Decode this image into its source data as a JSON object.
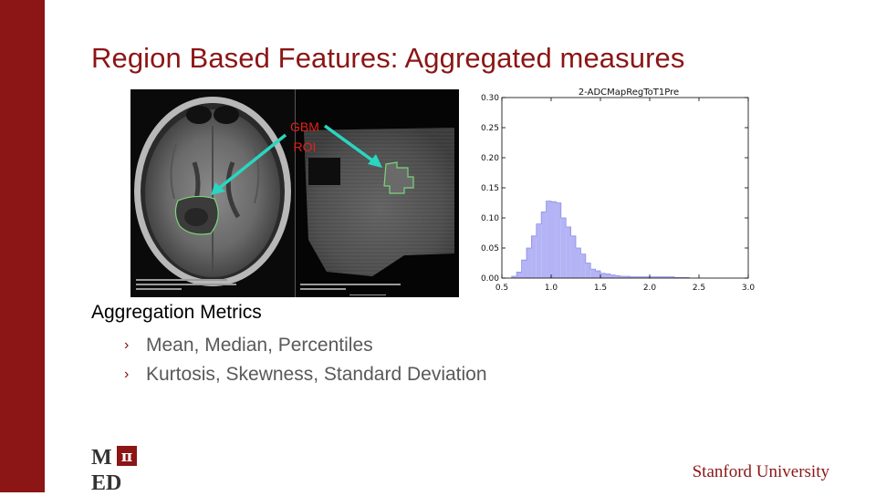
{
  "slide": {
    "title": "Region Based Features: Aggregated measures",
    "section_heading": "Aggregation Metrics",
    "bullets": [
      "Mean, Median, Percentiles",
      "Kurtosis, Skewness, Standard Deviation"
    ]
  },
  "mri": {
    "annotation_line1": "GBM",
    "annotation_line2": "ROI",
    "annotation_color": "#e8201a",
    "arrow_color": "#2ad6c0",
    "roi_color": "#7bd67b"
  },
  "logo": {
    "top_left": "M",
    "top_right": "π",
    "bottom": "ED"
  },
  "footer": {
    "university": "Stanford University"
  },
  "colors": {
    "brand": "#8c1515",
    "histogram_fill": "#b3b3f5",
    "histogram_edge": "#8f8fe8"
  },
  "chart_data": {
    "type": "bar",
    "title": "2-ADCMapRegToT1Pre",
    "xlabel": "",
    "ylabel": "",
    "xlim": [
      0.5,
      3.0
    ],
    "ylim": [
      0.0,
      0.3
    ],
    "x_ticks": [
      "0.5",
      "1.0",
      "1.5",
      "2.0",
      "2.5",
      "3.0"
    ],
    "y_ticks": [
      "0.00",
      "0.05",
      "0.10",
      "0.15",
      "0.20",
      "0.25",
      "0.30"
    ],
    "bin_width": 0.05,
    "bin_starts": [
      0.6,
      0.65,
      0.7,
      0.75,
      0.8,
      0.85,
      0.9,
      0.95,
      1.0,
      1.05,
      1.1,
      1.15,
      1.2,
      1.25,
      1.3,
      1.35,
      1.4,
      1.45,
      1.5,
      1.55,
      1.6,
      1.65,
      1.7,
      1.75,
      1.8,
      1.85,
      1.9,
      1.95,
      2.0,
      2.05,
      2.1,
      2.15,
      2.2,
      2.25,
      2.3,
      2.35
    ],
    "values": [
      0.003,
      0.01,
      0.03,
      0.05,
      0.07,
      0.09,
      0.11,
      0.128,
      0.127,
      0.125,
      0.1,
      0.085,
      0.07,
      0.05,
      0.04,
      0.025,
      0.015,
      0.012,
      0.008,
      0.007,
      0.005,
      0.004,
      0.003,
      0.003,
      0.002,
      0.002,
      0.002,
      0.002,
      0.002,
      0.002,
      0.002,
      0.002,
      0.002,
      0.001,
      0.001,
      0.001
    ]
  }
}
